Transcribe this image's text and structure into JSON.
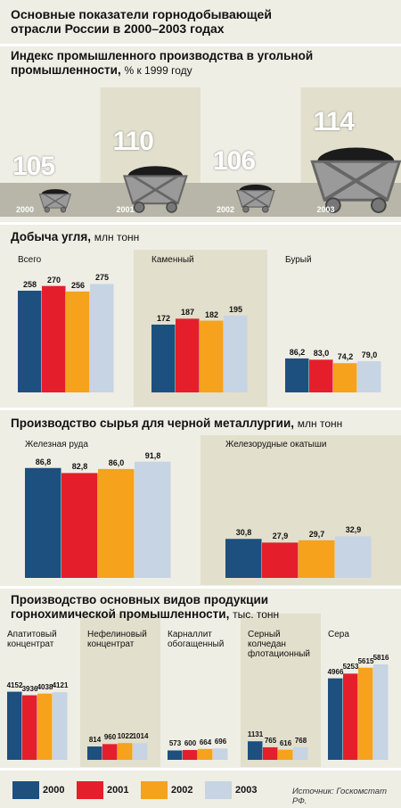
{
  "title": "Основные показатели горнодобывающей отрасли России в 2000–2003 годах",
  "chart_data": [
    {
      "type": "pictogram",
      "title": "Индекс промышленного производства в угольной промышленности,",
      "unit": "% к 1999 году",
      "categories": [
        "2000",
        "2001",
        "2002",
        "2003"
      ],
      "values": [
        105,
        110,
        106,
        114
      ]
    },
    {
      "type": "bar",
      "title": "Добыча угля,",
      "unit": "млн тонн",
      "categories": [
        "Всего",
        "Каменный",
        "Бурый"
      ],
      "series": [
        {
          "values": [
            258,
            172,
            86.2
          ],
          "value_labels": [
            "258",
            "172",
            "86,2"
          ]
        },
        {
          "values": [
            270,
            187,
            83.0
          ],
          "value_labels": [
            "270",
            "187",
            "83,0"
          ]
        },
        {
          "values": [
            256,
            182,
            74.2
          ],
          "value_labels": [
            "256",
            "182",
            "74,2"
          ]
        },
        {
          "values": [
            275,
            195,
            79.0
          ],
          "value_labels": [
            "275",
            "195",
            "79,0"
          ]
        }
      ]
    },
    {
      "type": "bar",
      "title": "Производство сырья для черной металлургии,",
      "unit": "млн тонн",
      "categories": [
        "Железная руда",
        "Железорудные окатыши"
      ],
      "series": [
        {
          "values": [
            86.8,
            30.8
          ],
          "value_labels": [
            "86,8",
            "30,8"
          ]
        },
        {
          "values": [
            82.8,
            27.9
          ],
          "value_labels": [
            "82,8",
            "27,9"
          ]
        },
        {
          "values": [
            86.0,
            29.7
          ],
          "value_labels": [
            "86,0",
            "29,7"
          ]
        },
        {
          "values": [
            91.8,
            32.9
          ],
          "value_labels": [
            "91,8",
            "32,9"
          ]
        }
      ]
    },
    {
      "type": "bar",
      "title": "Производство основных видов продукции горнохимической промышленности,",
      "unit": "тыс. тонн",
      "categories": [
        "Апатитовый концентрат",
        "Нефелиновый концентрат",
        "Карналлит обогащенный",
        "Серный колчедан флотационный",
        "Сера"
      ],
      "series": [
        {
          "values": [
            4152,
            814,
            573,
            1131,
            4966
          ]
        },
        {
          "values": [
            3936,
            960,
            600,
            765,
            5253
          ]
        },
        {
          "values": [
            4038,
            1022,
            664,
            616,
            5615
          ]
        },
        {
          "values": [
            4121,
            1014,
            696,
            768,
            5816
          ]
        }
      ]
    }
  ],
  "legend": [
    {
      "name": "2000",
      "color": "#1d4f7f"
    },
    {
      "name": "2001",
      "color": "#e41f2b"
    },
    {
      "name": "2002",
      "color": "#f6a21c"
    },
    {
      "name": "2003",
      "color": "#c6d4e4"
    }
  ],
  "source": "Источник: Госкомстат РФ."
}
